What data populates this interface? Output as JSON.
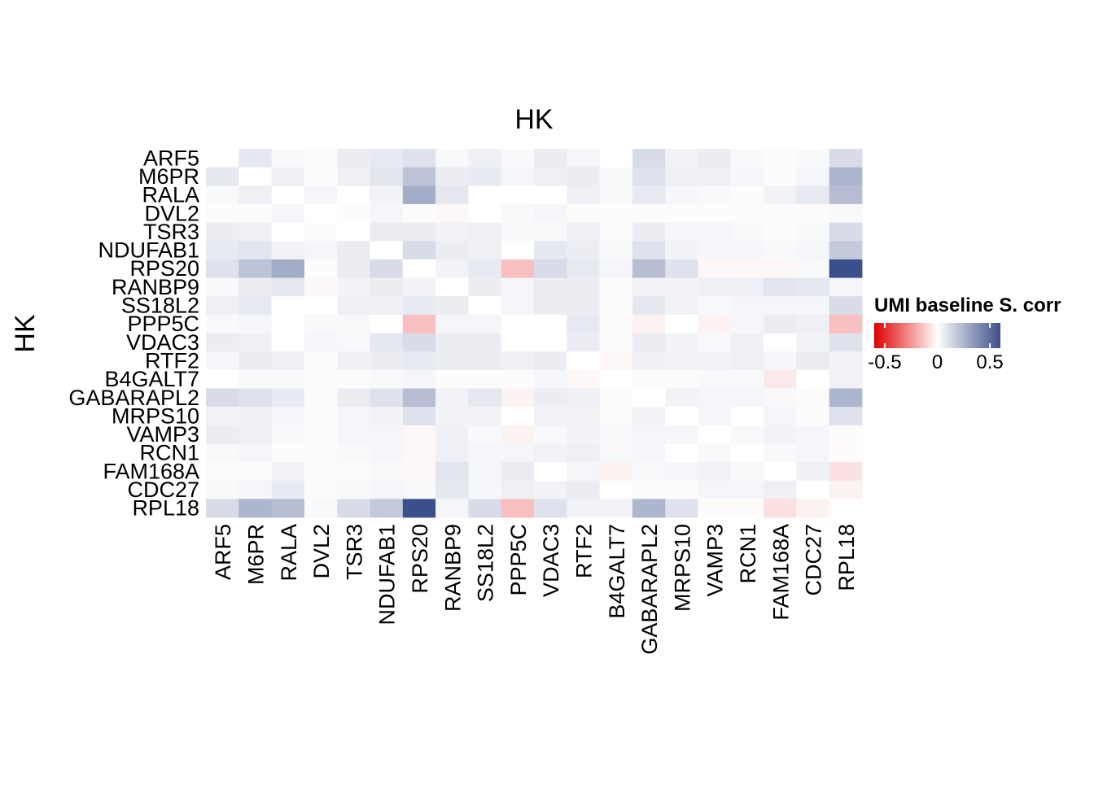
{
  "chart_data": {
    "type": "heatmap",
    "title": "HK",
    "xlabel": "",
    "ylabel": "HK",
    "x_categories": [
      "ARF5",
      "M6PR",
      "RALA",
      "DVL2",
      "TSR3",
      "NDUFAB1",
      "RPS20",
      "RANBP9",
      "SS18L2",
      "PPP5C",
      "VDAC3",
      "RTF2",
      "B4GALT7",
      "GABARAPL2",
      "MRPS10",
      "VAMP3",
      "RCN1",
      "FAM168A",
      "CDC27",
      "RPL18"
    ],
    "y_categories": [
      "ARF5",
      "M6PR",
      "RALA",
      "DVL2",
      "TSR3",
      "NDUFAB1",
      "RPS20",
      "RANBP9",
      "SS18L2",
      "PPP5C",
      "VDAC3",
      "RTF2",
      "B4GALT7",
      "GABARAPL2",
      "MRPS10",
      "VAMP3",
      "RCN1",
      "FAM168A",
      "CDC27",
      "RPL18"
    ],
    "values": [
      [
        0,
        0.08,
        0.02,
        0.01,
        0.06,
        0.07,
        0.1,
        0.02,
        0.05,
        0.02,
        0.06,
        0.03,
        0,
        0.12,
        0.04,
        0.06,
        0.02,
        0.01,
        0.02,
        0.12
      ],
      [
        0.08,
        0,
        0.05,
        -0.01,
        0.05,
        0.09,
        0.2,
        0.06,
        0.07,
        0.03,
        0.05,
        0.06,
        0.02,
        0.1,
        0.05,
        0.05,
        0.03,
        0.01,
        0.03,
        0.25
      ],
      [
        0.02,
        0.05,
        0,
        0.03,
        0,
        0.04,
        0.28,
        0.08,
        0,
        0,
        0,
        0.05,
        0.02,
        0.07,
        0.03,
        0.02,
        0.01,
        0.04,
        0.07,
        0.22
      ],
      [
        0.01,
        -0.01,
        0.03,
        0,
        0.01,
        0.03,
        0.01,
        -0.02,
        0,
        0.02,
        0.03,
        -0.01,
        0.01,
        0.01,
        0.01,
        0.01,
        0.01,
        0.01,
        -0.01,
        0.02
      ],
      [
        0.06,
        0.05,
        0,
        0.01,
        0,
        0.06,
        0.06,
        0.04,
        0.05,
        0.02,
        0.02,
        0.05,
        0.01,
        0.06,
        0.03,
        0.03,
        0.02,
        0.01,
        0.02,
        0.12
      ],
      [
        0.07,
        0.09,
        0.04,
        0.03,
        0.06,
        0,
        0.12,
        0.06,
        0.05,
        0,
        0.08,
        0.06,
        0.02,
        0.1,
        0.04,
        0.03,
        0.03,
        0.02,
        0.03,
        0.18
      ],
      [
        0.1,
        0.2,
        0.28,
        0.01,
        0.06,
        0.12,
        0,
        0.04,
        0.07,
        -0.15,
        0.12,
        0.07,
        0.03,
        0.22,
        0.1,
        -0.02,
        -0.02,
        -0.02,
        0.02,
        0.6
      ],
      [
        0.02,
        0.06,
        0.08,
        -0.02,
        0.04,
        0.06,
        0.04,
        0,
        0.06,
        0.03,
        0.06,
        0.06,
        0.01,
        0.04,
        0.04,
        0.05,
        0.05,
        0.09,
        0.08,
        0.03
      ],
      [
        0.05,
        0.07,
        0,
        0,
        0.05,
        0.05,
        0.07,
        0.06,
        0,
        0.03,
        0.06,
        0.06,
        0.01,
        0.08,
        0.04,
        0.02,
        0.03,
        0.03,
        0.03,
        0.12
      ],
      [
        0.02,
        0.03,
        0,
        0.02,
        0.02,
        0,
        -0.15,
        0.03,
        0.03,
        0,
        0,
        0.07,
        0.01,
        -0.03,
        0,
        -0.03,
        0.03,
        0.06,
        0.05,
        -0.15
      ],
      [
        0.06,
        0.05,
        0,
        0.03,
        0.02,
        0.08,
        0.12,
        0.06,
        0.06,
        0,
        0,
        0.06,
        0.01,
        0.06,
        0.04,
        0.02,
        0.05,
        0,
        0.04,
        0.1
      ],
      [
        0.03,
        0.06,
        0.05,
        -0.01,
        0.05,
        0.06,
        0.07,
        0.06,
        0.06,
        0.05,
        0.06,
        0,
        -0.02,
        0.05,
        0.04,
        0.04,
        0.05,
        0.03,
        0.06,
        0.04
      ],
      [
        0,
        0.02,
        0.02,
        0.01,
        0.01,
        0.02,
        0.03,
        0.01,
        0.01,
        0.01,
        0.03,
        -0.02,
        0,
        0.01,
        0.01,
        0.02,
        0.02,
        -0.05,
        0,
        0.04
      ],
      [
        0.12,
        0.1,
        0.07,
        0.01,
        0.06,
        0.1,
        0.22,
        0.04,
        0.08,
        -0.03,
        0.06,
        0.05,
        0.01,
        0,
        0.04,
        0.03,
        0.03,
        0.02,
        0.01,
        0.25
      ],
      [
        0.04,
        0.05,
        0.03,
        0.01,
        0.03,
        0.04,
        0.1,
        0.04,
        0.04,
        0,
        0.04,
        0.04,
        0.01,
        0.04,
        0,
        0.03,
        0,
        0.03,
        0.01,
        0.1
      ],
      [
        0.06,
        0.05,
        0.02,
        0.01,
        0.03,
        0.03,
        -0.02,
        0.05,
        0.02,
        -0.03,
        0.02,
        0.04,
        0.02,
        0.03,
        0.03,
        0,
        0.02,
        0.04,
        0.03,
        -0.01
      ],
      [
        0.02,
        0.03,
        0.01,
        0.01,
        0.02,
        0.03,
        -0.02,
        0.05,
        0.03,
        0.03,
        0.04,
        0.05,
        0.02,
        0.03,
        0,
        0.02,
        0,
        0.02,
        0.03,
        -0.01
      ],
      [
        0.01,
        0.01,
        0.04,
        0.01,
        0.01,
        0.02,
        -0.02,
        0.09,
        0.03,
        0.06,
        0,
        0.03,
        -0.03,
        0.02,
        0.03,
        0.04,
        0.02,
        0,
        0.05,
        -0.07
      ],
      [
        0.02,
        0.03,
        0.07,
        -0.01,
        0.02,
        0.03,
        0.02,
        0.08,
        0.03,
        0.05,
        0.04,
        0.06,
        0,
        0.01,
        0.01,
        0.03,
        0.03,
        0.05,
        0,
        -0.03
      ],
      [
        0.12,
        0.25,
        0.22,
        0.02,
        0.12,
        0.18,
        0.6,
        0.03,
        0.12,
        -0.15,
        0.1,
        0.04,
        0.04,
        0.25,
        0.1,
        -0.01,
        -0.01,
        -0.07,
        -0.03,
        0
      ]
    ],
    "legend": {
      "title": "UMI baseline S. corr",
      "placement": "right",
      "range": [
        -0.6,
        0.6
      ],
      "ticks": [
        -0.5,
        0,
        0.5
      ],
      "tick_labels": [
        "-0.5",
        "0",
        "0.5"
      ],
      "colors": {
        "low": "#e00000",
        "mid": "#ffffff",
        "high": "#3b4f8a"
      }
    },
    "grid": false
  }
}
